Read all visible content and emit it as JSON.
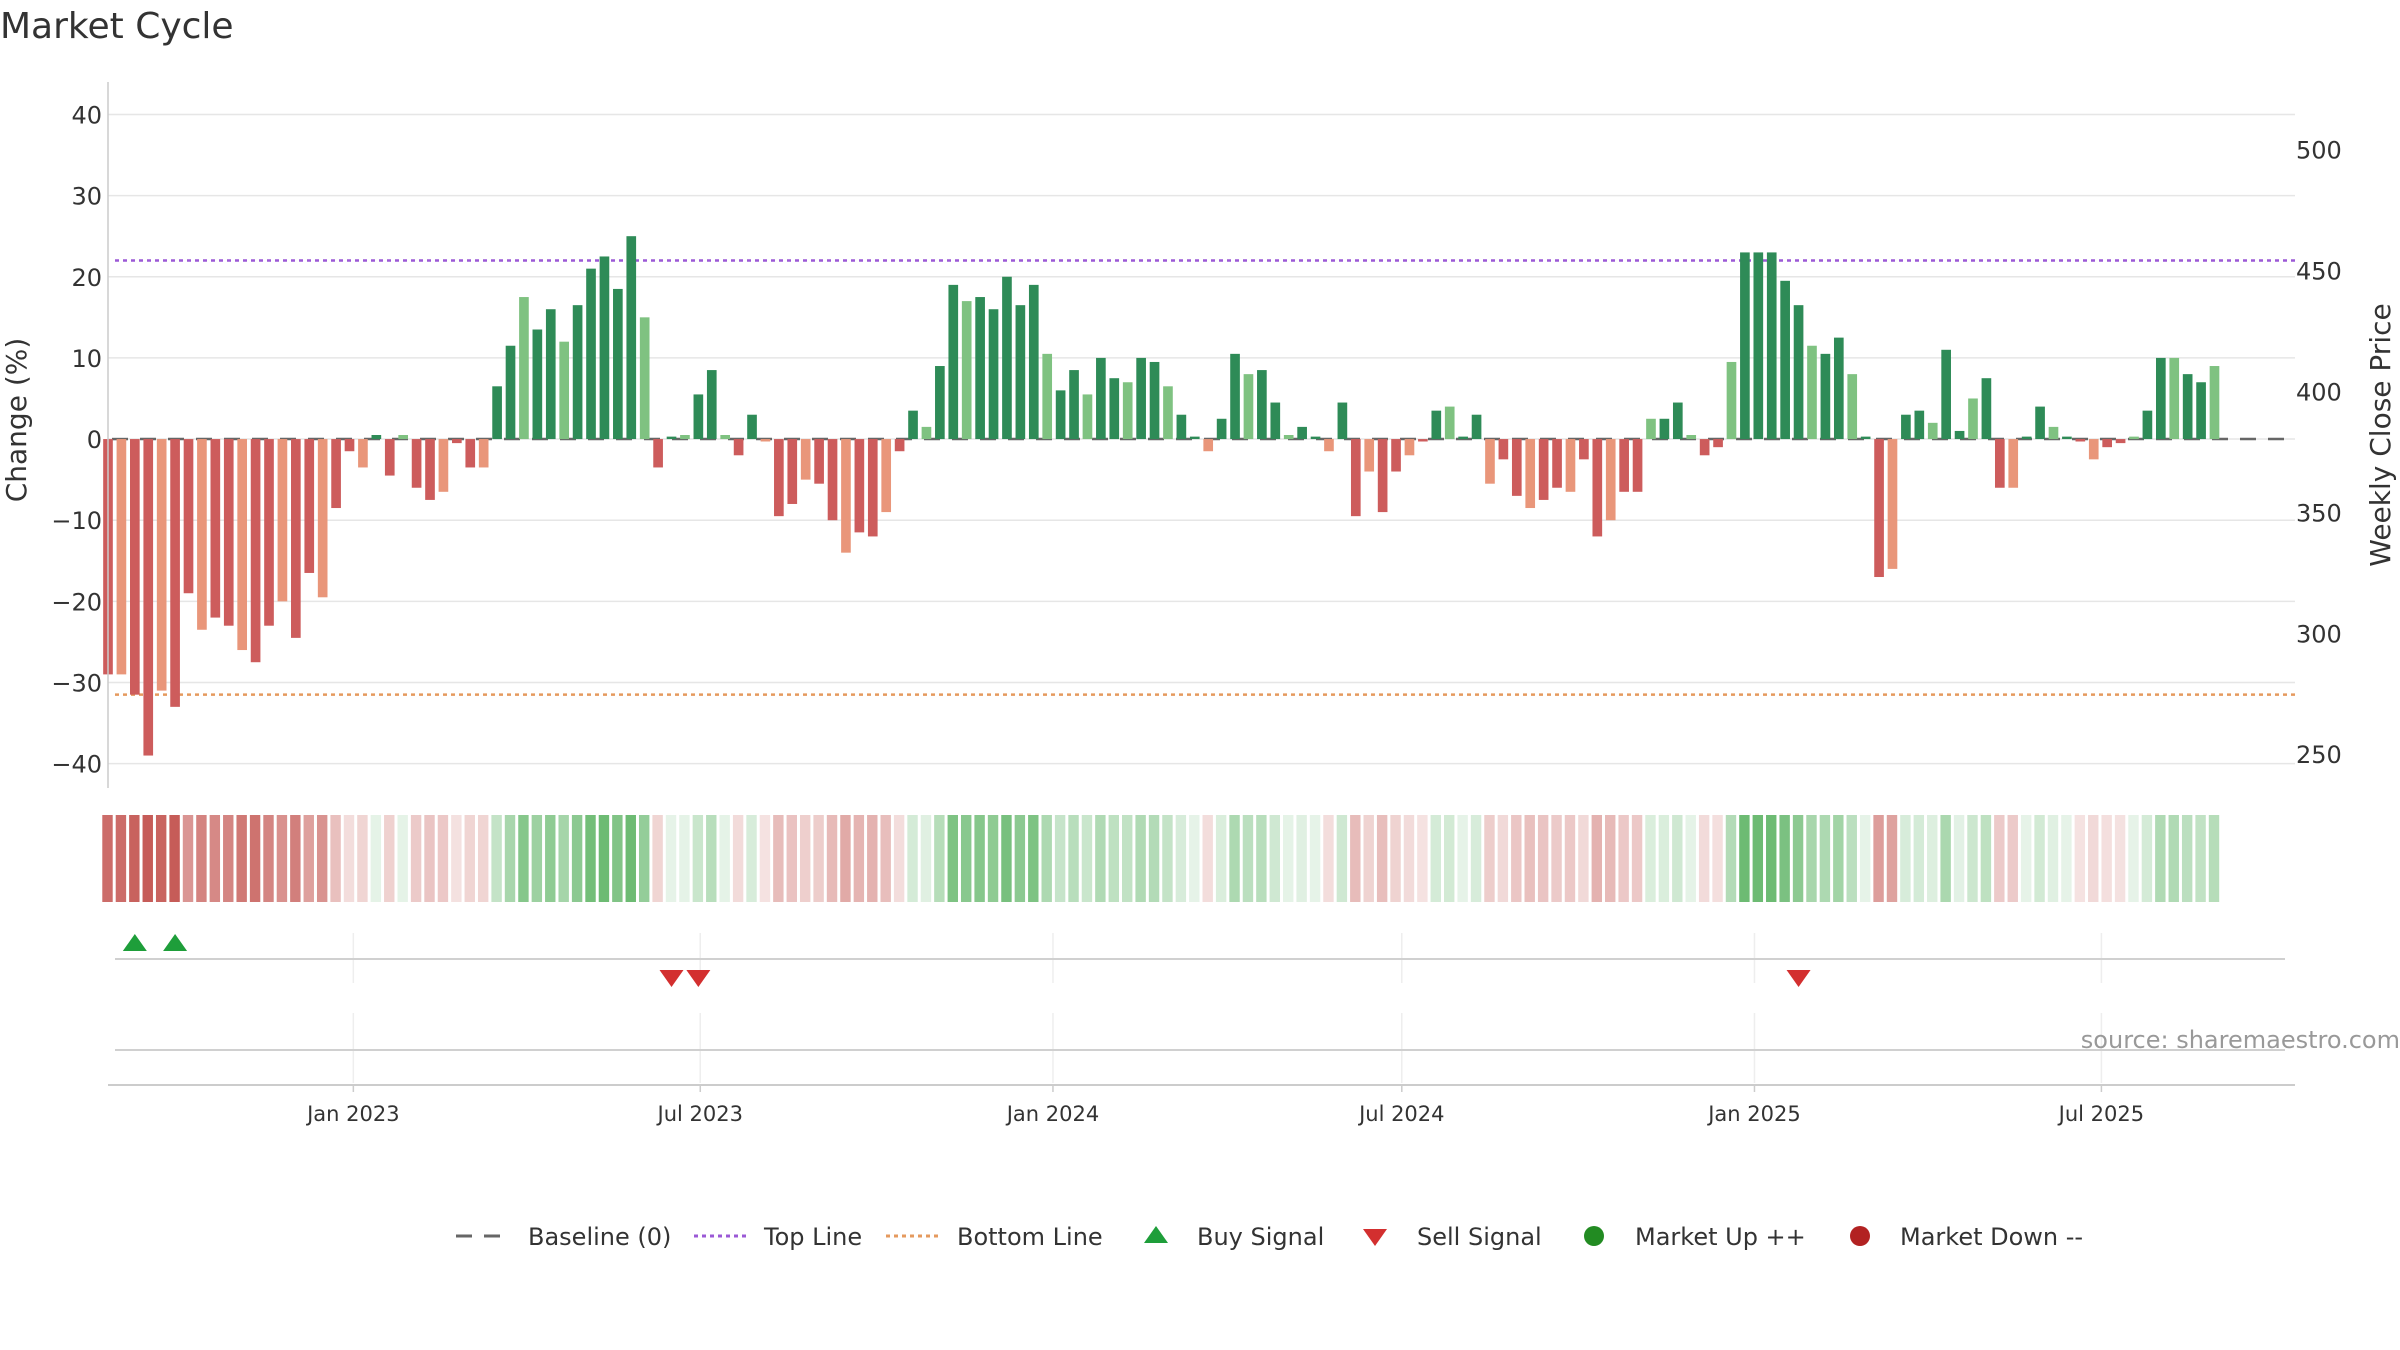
{
  "chart_data": {
    "type": "bar",
    "title": "Market Cycle",
    "ylabel": "Change (%)",
    "y2label": "Weekly Close Price",
    "ylim": [
      -43,
      44
    ],
    "y_ticks": [
      "40",
      "30",
      "20",
      "10",
      "0",
      "−10",
      "−20",
      "−30",
      "−40"
    ],
    "y2lim": [
      236,
      528
    ],
    "y2_ticks": [
      "500",
      "450",
      "400",
      "350",
      "300",
      "250"
    ],
    "x_start": "2022-08-26",
    "x_end": "2025-10-10",
    "x_ticks": [
      {
        "date": "2023-01-01",
        "label": "Jan 2023"
      },
      {
        "date": "2023-07-01",
        "label": "Jul 2023"
      },
      {
        "date": "2024-01-01",
        "label": "Jan 2024"
      },
      {
        "date": "2024-07-01",
        "label": "Jul 2024"
      },
      {
        "date": "2025-01-01",
        "label": "Jan 2025"
      },
      {
        "date": "2025-07-01",
        "label": "Jul 2025"
      }
    ],
    "top_line": 22,
    "bottom_line": -31.5,
    "start_date": "2022-08-26",
    "interval_days": 7,
    "values": [
      -29,
      -29,
      -31.5,
      -39,
      -31,
      -33,
      -19,
      -23.5,
      -22,
      -23,
      -26,
      -27.5,
      -23,
      -20,
      -24.5,
      -16.5,
      -19.5,
      -8.5,
      -1.5,
      -3.5,
      0.5,
      -4.5,
      0.5,
      -6,
      -7.5,
      -6.5,
      -0.5,
      -3.5,
      -3.5,
      6.5,
      11.5,
      17.5,
      13.5,
      16,
      12,
      16.5,
      21,
      22.5,
      18.5,
      25,
      15,
      -3.5,
      0.3,
      0.5,
      5.5,
      8.5,
      0.5,
      -2,
      3,
      -0.3,
      -9.5,
      -8,
      -5,
      -5.5,
      -10,
      -14,
      -11.5,
      -12,
      -9,
      -1.5,
      3.5,
      1.5,
      9,
      19,
      17,
      17.5,
      16,
      20,
      16.5,
      19,
      10.5,
      6,
      8.5,
      5.5,
      10,
      7.5,
      7,
      10,
      9.5,
      6.5,
      3,
      0.3,
      -1.5,
      2.5,
      10.5,
      8,
      8.5,
      4.5,
      0.5,
      1.5,
      0.3,
      -1.5,
      4.5,
      -9.5,
      -4,
      -9,
      -4,
      -2,
      -0.3,
      3.5,
      4,
      0.3,
      3,
      -5.5,
      -2.5,
      -7,
      -8.5,
      -7.5,
      -6,
      -6.5,
      -2.5,
      -12,
      -10,
      -6.5,
      -6.5,
      2.5,
      2.5,
      4.5,
      0.5,
      -2,
      -1,
      9.5,
      23,
      23,
      23,
      19.5,
      16.5,
      11.5,
      10.5,
      12.5,
      8,
      0.3,
      -17,
      -16,
      3,
      3.5,
      2,
      11,
      1,
      5,
      7.5,
      -6,
      -6,
      0.3,
      4,
      1.5,
      0.3,
      -0.3,
      -2.5,
      -1,
      -0.5,
      0.3,
      3.5,
      10,
      10,
      8,
      7,
      9
    ]
  },
  "legend": {
    "items": [
      {
        "label": "Baseline (0)"
      },
      {
        "label": "Top Line"
      },
      {
        "label": "Bottom Line"
      },
      {
        "label": "Buy Signal"
      },
      {
        "label": "Sell Signal"
      },
      {
        "label": "Market Up ++"
      },
      {
        "label": "Market Down --"
      }
    ]
  },
  "signals": {
    "buy_dates": [
      "2022-09-09",
      "2022-09-30"
    ],
    "sell_dates": [
      "2023-06-16",
      "2023-06-30",
      "2025-01-24"
    ]
  },
  "source": "source: sharemaestro.com",
  "colors": {
    "strong_up": "#2e8b57",
    "up": "#7fc281",
    "weak_down": "#e9967a",
    "strong_down": "#cd5c5c",
    "top_line": "#9b59d6",
    "bottom_line": "#e59a5e",
    "buy": "#1e9e3a",
    "sell": "#d32f2f",
    "market_up": "#228b22",
    "market_down": "#b22222",
    "grid": "#e6e6e6",
    "baseline": "#666666"
  }
}
